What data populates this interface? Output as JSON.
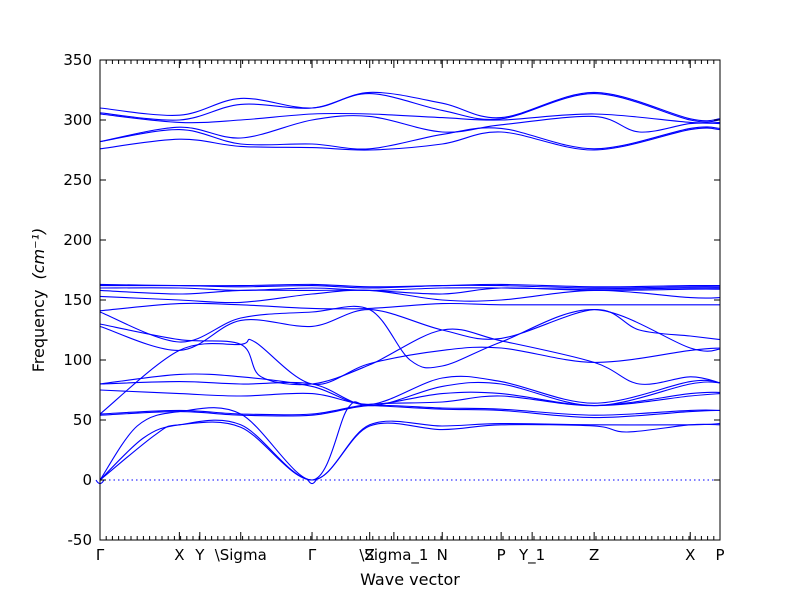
{
  "chart_data": {
    "type": "line",
    "title": "",
    "xlabel": "Wave vector",
    "ylabel": "Frequency",
    "ylabel_unit": "(cm⁻¹)",
    "ylim": [
      -50,
      350
    ],
    "yticks": [
      -50,
      0,
      50,
      100,
      150,
      200,
      250,
      300,
      350
    ],
    "xlim": [
      0,
      1
    ],
    "high_symmetry_points": [
      {
        "label": "Γ",
        "x": 0.0
      },
      {
        "label": "X",
        "x": 0.128
      },
      {
        "label": "Y",
        "x": 0.161
      },
      {
        "label": "\\Sigma",
        "x": 0.227
      },
      {
        "label": "Γ",
        "x": 0.342
      },
      {
        "label": "Z",
        "x": 0.435
      },
      {
        "label": "\\Sigma_1",
        "x": 0.474
      },
      {
        "label": "N",
        "x": 0.552
      },
      {
        "label": "P",
        "x": 0.647
      },
      {
        "label": "Y_1",
        "x": 0.697
      },
      {
        "label": "Z",
        "x": 0.797
      },
      {
        "label": "X",
        "x": 0.952
      },
      {
        "label": "P",
        "x": 1.0
      }
    ],
    "zero_line": 0,
    "series": [
      {
        "values": [
          [
            0,
            0
          ],
          [
            0.09,
            38
          ],
          [
            0.128,
            46
          ],
          [
            0.227,
            44
          ],
          [
            0.342,
            0
          ],
          [
            0.435,
            45
          ],
          [
            0.552,
            42
          ],
          [
            0.647,
            46
          ],
          [
            0.797,
            45
          ],
          [
            0.85,
            40
          ],
          [
            0.952,
            46
          ],
          [
            1.0,
            46
          ]
        ]
      },
      {
        "values": [
          [
            0,
            0
          ],
          [
            0.07,
            35
          ],
          [
            0.128,
            46
          ],
          [
            0.227,
            46
          ],
          [
            0.342,
            0
          ],
          [
            0.435,
            46
          ],
          [
            0.552,
            45
          ],
          [
            0.647,
            47
          ],
          [
            0.797,
            46
          ],
          [
            0.952,
            46
          ],
          [
            1.0,
            47
          ]
        ]
      },
      {
        "values": [
          [
            0,
            0
          ],
          [
            0.06,
            45
          ],
          [
            0.128,
            57
          ],
          [
            0.227,
            55
          ],
          [
            0.342,
            0
          ],
          [
            0.4,
            60
          ],
          [
            0.435,
            62
          ],
          [
            0.552,
            59
          ],
          [
            0.647,
            58
          ],
          [
            0.797,
            52
          ],
          [
            0.952,
            57
          ],
          [
            1.0,
            58
          ]
        ]
      },
      {
        "values": [
          [
            0,
            54
          ],
          [
            0.128,
            57
          ],
          [
            0.227,
            54
          ],
          [
            0.342,
            54
          ],
          [
            0.435,
            62
          ],
          [
            0.552,
            60
          ],
          [
            0.647,
            59
          ],
          [
            0.797,
            54
          ],
          [
            0.952,
            58
          ],
          [
            1.0,
            58
          ]
        ]
      },
      {
        "values": [
          [
            0,
            55
          ],
          [
            0.128,
            58
          ],
          [
            0.227,
            55
          ],
          [
            0.342,
            55
          ],
          [
            0.435,
            63
          ],
          [
            0.552,
            65
          ],
          [
            0.647,
            70
          ],
          [
            0.797,
            62
          ],
          [
            0.952,
            72
          ],
          [
            1.0,
            73
          ]
        ]
      },
      {
        "values": [
          [
            0,
            75
          ],
          [
            0.128,
            72
          ],
          [
            0.227,
            70
          ],
          [
            0.342,
            72
          ],
          [
            0.435,
            63
          ],
          [
            0.552,
            72
          ],
          [
            0.647,
            72
          ],
          [
            0.797,
            62
          ],
          [
            0.952,
            70
          ],
          [
            1.0,
            72
          ]
        ]
      },
      {
        "values": [
          [
            0,
            80
          ],
          [
            0.128,
            82
          ],
          [
            0.227,
            80
          ],
          [
            0.342,
            80
          ],
          [
            0.435,
            62
          ],
          [
            0.552,
            78
          ],
          [
            0.647,
            80
          ],
          [
            0.797,
            62
          ],
          [
            0.952,
            80
          ],
          [
            1.0,
            81
          ]
        ]
      },
      {
        "values": [
          [
            0,
            80
          ],
          [
            0.128,
            88
          ],
          [
            0.227,
            86
          ],
          [
            0.342,
            78
          ],
          [
            0.435,
            63
          ],
          [
            0.552,
            85
          ],
          [
            0.647,
            82
          ],
          [
            0.797,
            64
          ],
          [
            0.952,
            82
          ],
          [
            1.0,
            81
          ]
        ]
      },
      {
        "values": [
          [
            0,
            55
          ],
          [
            0.128,
            108
          ],
          [
            0.227,
            113
          ],
          [
            0.25,
            115
          ],
          [
            0.342,
            80
          ],
          [
            0.435,
            97
          ],
          [
            0.552,
            108
          ],
          [
            0.647,
            110
          ],
          [
            0.797,
            98
          ],
          [
            0.952,
            108
          ],
          [
            1.0,
            110
          ]
        ]
      },
      {
        "values": [
          [
            0,
            130
          ],
          [
            0.128,
            117
          ],
          [
            0.227,
            113
          ],
          [
            0.26,
            86
          ],
          [
            0.342,
            80
          ],
          [
            0.435,
            96
          ],
          [
            0.552,
            125
          ],
          [
            0.647,
            116
          ],
          [
            0.797,
            98
          ],
          [
            0.87,
            80
          ],
          [
            0.952,
            86
          ],
          [
            1.0,
            81
          ]
        ]
      },
      {
        "values": [
          [
            0,
            128
          ],
          [
            0.128,
            108
          ],
          [
            0.227,
            133
          ],
          [
            0.342,
            128
          ],
          [
            0.435,
            142
          ],
          [
            0.552,
            125
          ],
          [
            0.647,
            118
          ],
          [
            0.797,
            142
          ],
          [
            0.87,
            125
          ],
          [
            0.952,
            120
          ],
          [
            1.0,
            117
          ]
        ]
      },
      {
        "values": [
          [
            0,
            140
          ],
          [
            0.128,
            115
          ],
          [
            0.227,
            135
          ],
          [
            0.342,
            140
          ],
          [
            0.435,
            142
          ],
          [
            0.5,
            100
          ],
          [
            0.552,
            95
          ],
          [
            0.647,
            115
          ],
          [
            0.797,
            142
          ],
          [
            0.952,
            110
          ],
          [
            1.0,
            109
          ]
        ]
      },
      {
        "values": [
          [
            0,
            141
          ],
          [
            0.128,
            147
          ],
          [
            0.227,
            146
          ],
          [
            0.342,
            143
          ],
          [
            0.435,
            143
          ],
          [
            0.552,
            147
          ],
          [
            0.647,
            146
          ],
          [
            0.797,
            146
          ],
          [
            0.952,
            146
          ],
          [
            1.0,
            146
          ]
        ]
      },
      {
        "values": [
          [
            0,
            153
          ],
          [
            0.128,
            150
          ],
          [
            0.227,
            148
          ],
          [
            0.342,
            155
          ],
          [
            0.435,
            158
          ],
          [
            0.552,
            150
          ],
          [
            0.647,
            150
          ],
          [
            0.797,
            158
          ],
          [
            0.952,
            152
          ],
          [
            1.0,
            152
          ]
        ]
      },
      {
        "values": [
          [
            0,
            158
          ],
          [
            0.128,
            155
          ],
          [
            0.227,
            158
          ],
          [
            0.342,
            158
          ],
          [
            0.435,
            158
          ],
          [
            0.552,
            155
          ],
          [
            0.647,
            160
          ],
          [
            0.797,
            158
          ],
          [
            0.952,
            159
          ],
          [
            1.0,
            159
          ]
        ]
      },
      {
        "values": [
          [
            0,
            160
          ],
          [
            0.128,
            160
          ],
          [
            0.227,
            158
          ],
          [
            0.342,
            160
          ],
          [
            0.435,
            158
          ],
          [
            0.552,
            160
          ],
          [
            0.647,
            160
          ],
          [
            0.797,
            159
          ],
          [
            0.952,
            160
          ],
          [
            1.0,
            160
          ]
        ]
      },
      {
        "values": [
          [
            0,
            162
          ],
          [
            0.128,
            162
          ],
          [
            0.227,
            161
          ],
          [
            0.342,
            162
          ],
          [
            0.435,
            160
          ],
          [
            0.552,
            162
          ],
          [
            0.647,
            162
          ],
          [
            0.797,
            160
          ],
          [
            0.952,
            161
          ],
          [
            1.0,
            161
          ]
        ]
      },
      {
        "values": [
          [
            0,
            163
          ],
          [
            0.128,
            162
          ],
          [
            0.227,
            162
          ],
          [
            0.342,
            163
          ],
          [
            0.435,
            161
          ],
          [
            0.552,
            162
          ],
          [
            0.647,
            163
          ],
          [
            0.797,
            161
          ],
          [
            0.952,
            162
          ],
          [
            1.0,
            162
          ]
        ]
      },
      {
        "values": [
          [
            0,
            276
          ],
          [
            0.128,
            284
          ],
          [
            0.227,
            278
          ],
          [
            0.342,
            277
          ],
          [
            0.435,
            275
          ],
          [
            0.552,
            280
          ],
          [
            0.647,
            290
          ],
          [
            0.797,
            275
          ],
          [
            0.952,
            292
          ],
          [
            1.0,
            292
          ]
        ]
      },
      {
        "values": [
          [
            0,
            282
          ],
          [
            0.128,
            292
          ],
          [
            0.227,
            280
          ],
          [
            0.342,
            280
          ],
          [
            0.435,
            276
          ],
          [
            0.552,
            288
          ],
          [
            0.647,
            293
          ],
          [
            0.797,
            276
          ],
          [
            0.952,
            293
          ],
          [
            1.0,
            293
          ]
        ]
      },
      {
        "values": [
          [
            0,
            282
          ],
          [
            0.128,
            294
          ],
          [
            0.227,
            285
          ],
          [
            0.342,
            300
          ],
          [
            0.435,
            303
          ],
          [
            0.552,
            290
          ],
          [
            0.647,
            296
          ],
          [
            0.797,
            303
          ],
          [
            0.87,
            290
          ],
          [
            0.952,
            297
          ],
          [
            1.0,
            297
          ]
        ]
      },
      {
        "values": [
          [
            0,
            305
          ],
          [
            0.128,
            298
          ],
          [
            0.227,
            300
          ],
          [
            0.342,
            305
          ],
          [
            0.435,
            305
          ],
          [
            0.552,
            302
          ],
          [
            0.647,
            300
          ],
          [
            0.797,
            305
          ],
          [
            0.952,
            298
          ],
          [
            1.0,
            298
          ]
        ]
      },
      {
        "values": [
          [
            0,
            306
          ],
          [
            0.128,
            300
          ],
          [
            0.227,
            313
          ],
          [
            0.342,
            310
          ],
          [
            0.435,
            322
          ],
          [
            0.552,
            308
          ],
          [
            0.647,
            301
          ],
          [
            0.797,
            322
          ],
          [
            0.952,
            300
          ],
          [
            1.0,
            300
          ]
        ]
      },
      {
        "values": [
          [
            0,
            310
          ],
          [
            0.128,
            304
          ],
          [
            0.227,
            318
          ],
          [
            0.342,
            310
          ],
          [
            0.435,
            323
          ],
          [
            0.552,
            314
          ],
          [
            0.647,
            302
          ],
          [
            0.797,
            323
          ],
          [
            0.952,
            301
          ],
          [
            1.0,
            301
          ]
        ]
      }
    ]
  }
}
